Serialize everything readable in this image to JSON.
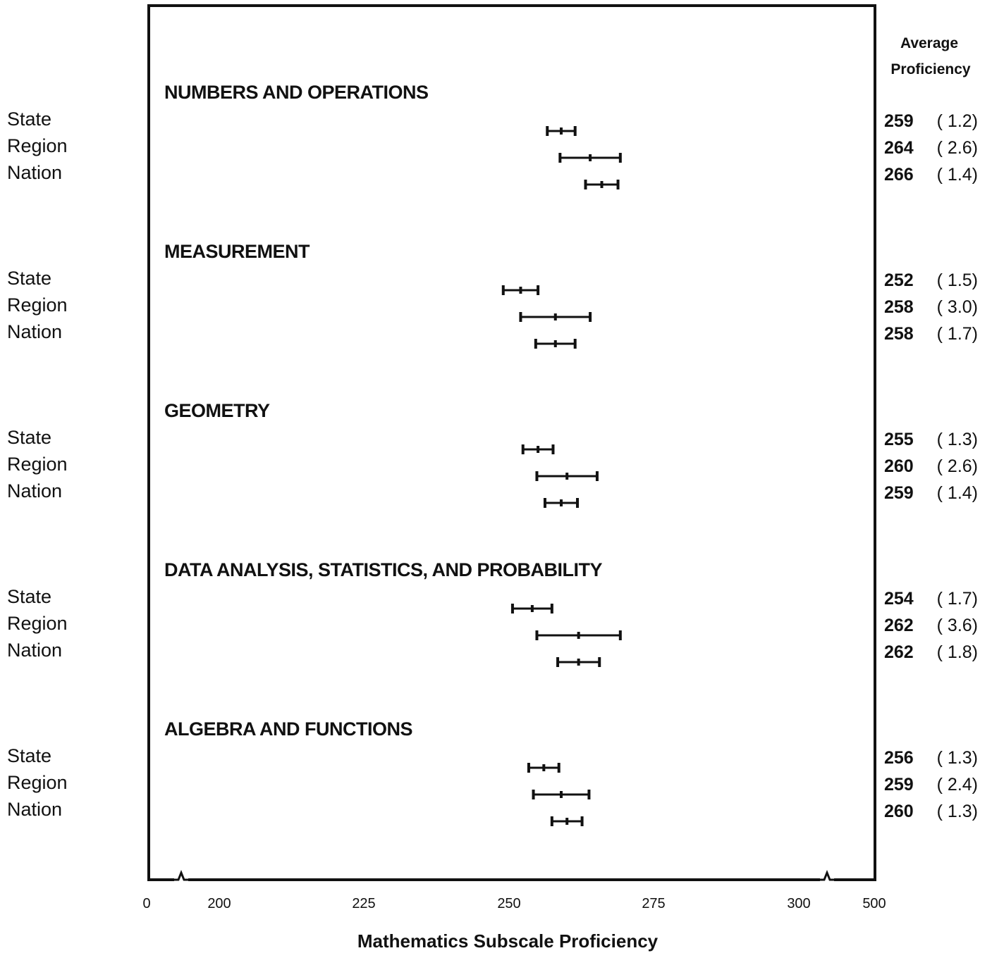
{
  "chart_data": {
    "type": "errorbar",
    "right_header": [
      "Average",
      "Proficiency"
    ],
    "xlabel": "Mathematics Subscale Proficiency",
    "xlim": [
      200,
      300
    ],
    "x_ticks": [
      "0",
      "200",
      "225",
      "250",
      "275",
      "300",
      "500"
    ],
    "axis_breaks": true,
    "groups": [
      {
        "title": "NUMBERS AND OPERATIONS",
        "rows": [
          {
            "label": "State",
            "value": 259,
            "se": 1.2,
            "display": "259",
            "se_display": "( 1.2)"
          },
          {
            "label": "Region",
            "value": 264,
            "se": 2.6,
            "display": "264",
            "se_display": "( 2.6)"
          },
          {
            "label": "Nation",
            "value": 266,
            "se": 1.4,
            "display": "266",
            "se_display": "( 1.4)"
          }
        ]
      },
      {
        "title": "MEASUREMENT",
        "rows": [
          {
            "label": "State",
            "value": 252,
            "se": 1.5,
            "display": "252",
            "se_display": "( 1.5)"
          },
          {
            "label": "Region",
            "value": 258,
            "se": 3.0,
            "display": "258",
            "se_display": "( 3.0)"
          },
          {
            "label": "Nation",
            "value": 258,
            "se": 1.7,
            "display": "258",
            "se_display": "( 1.7)"
          }
        ]
      },
      {
        "title": "GEOMETRY",
        "rows": [
          {
            "label": "State",
            "value": 255,
            "se": 1.3,
            "display": "255",
            "se_display": "( 1.3)"
          },
          {
            "label": "Region",
            "value": 260,
            "se": 2.6,
            "display": "260",
            "se_display": "( 2.6)"
          },
          {
            "label": "Nation",
            "value": 259,
            "se": 1.4,
            "display": "259",
            "se_display": "( 1.4)"
          }
        ]
      },
      {
        "title": "DATA ANALYSIS, STATISTICS, AND PROBABILITY",
        "rows": [
          {
            "label": "State",
            "value": 254,
            "se": 1.7,
            "display": "254",
            "se_display": "( 1.7)"
          },
          {
            "label": "Region",
            "value": 262,
            "se": 3.6,
            "display": "262",
            "se_display": "( 3.6)"
          },
          {
            "label": "Nation",
            "value": 262,
            "se": 1.8,
            "display": "262",
            "se_display": "( 1.8)"
          }
        ]
      },
      {
        "title": "ALGEBRA AND FUNCTIONS",
        "rows": [
          {
            "label": "State",
            "value": 256,
            "se": 1.3,
            "display": "256",
            "se_display": "( 1.3)"
          },
          {
            "label": "Region",
            "value": 259,
            "se": 2.4,
            "display": "259",
            "se_display": "( 2.4)"
          },
          {
            "label": "Nation",
            "value": 260,
            "se": 1.3,
            "display": "260",
            "se_display": "( 1.3)"
          }
        ]
      }
    ]
  }
}
